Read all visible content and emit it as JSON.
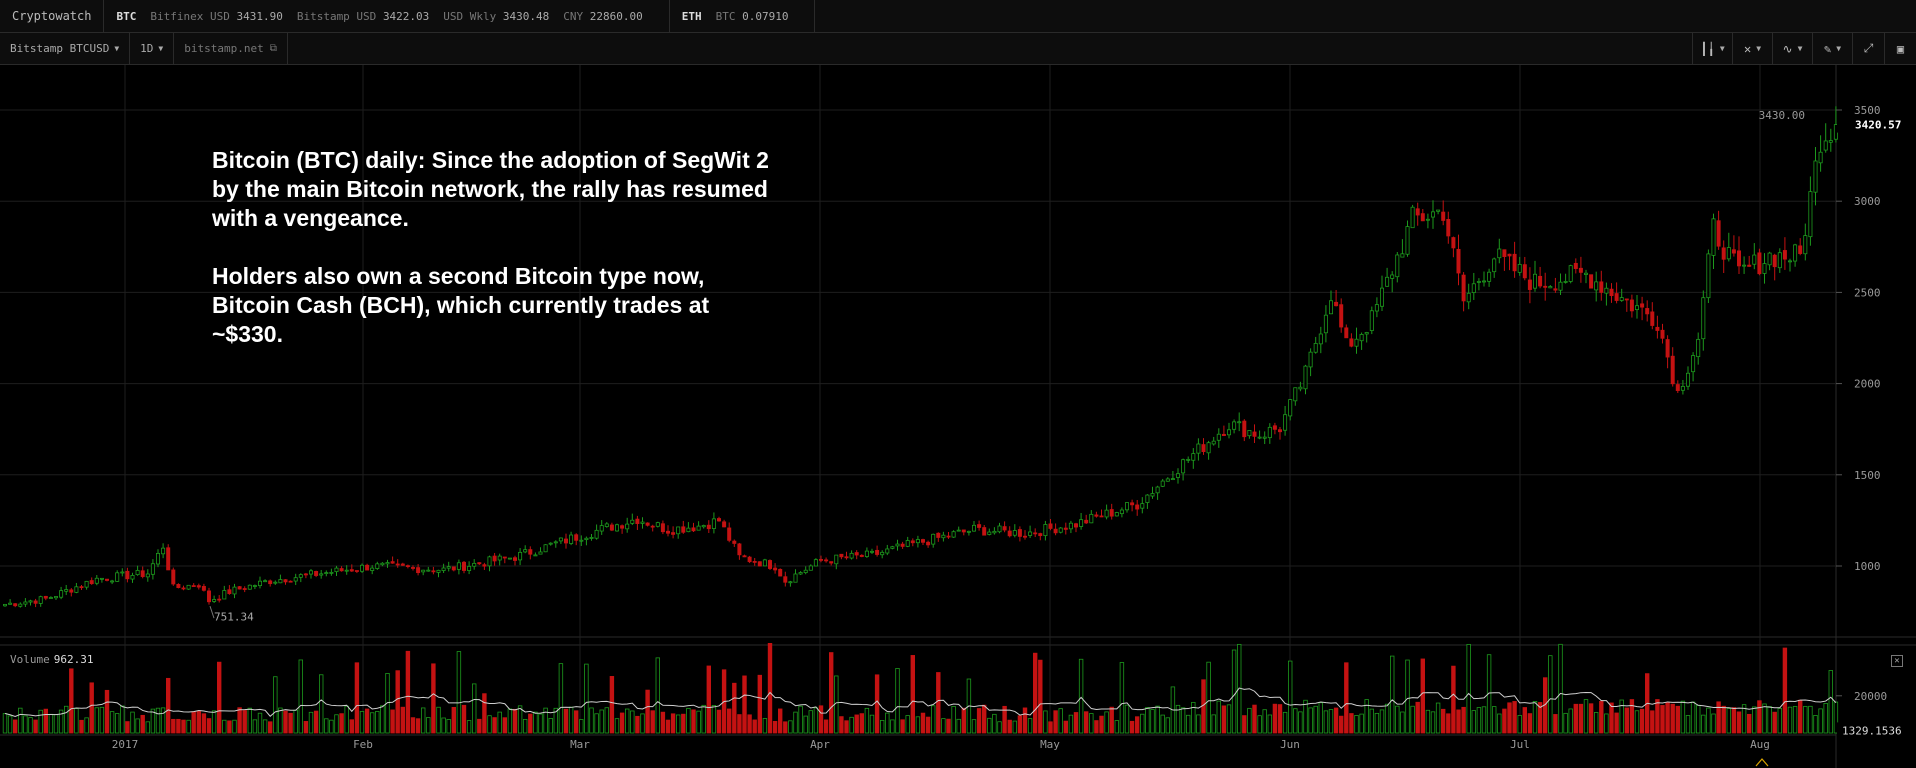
{
  "topbar": {
    "brand": "Cryptowatch",
    "btc": {
      "symbol": "BTC",
      "tickers": [
        {
          "label": "Bitfinex USD",
          "value": "3431.90"
        },
        {
          "label": "Bitstamp USD",
          "value": "3422.03"
        },
        {
          "label": "USD Wkly",
          "value": "3430.48"
        },
        {
          "label": "CNY",
          "value": "22860.00"
        }
      ]
    },
    "eth": {
      "symbol": "ETH",
      "tickers": [
        {
          "label": "BTC",
          "value": "0.07910"
        }
      ]
    }
  },
  "toolbar": {
    "market": "Bitstamp BTCUSD",
    "interval": "1D",
    "source": "bitstamp.net",
    "tools": [
      "candles-icon",
      "crosshair-icon",
      "indicators-icon",
      "draw-icon",
      "fullscreen-icon",
      "window-icon"
    ]
  },
  "annotation": {
    "para1": "Bitcoin (BTC) daily: Since the adoption of SegWit 2 by the main Bitcoin network, the rally has resumed with a vengeance.",
    "para2": "Holders also own a second Bitcoin type now, Bitcoin Cash (BCH), which currently trades at ~$330."
  },
  "volume": {
    "label": "Volume",
    "value": "962.31",
    "close_icon": "close-icon"
  },
  "colors": {
    "up": "#1d9a1d",
    "down": "#c41212",
    "grid": "#1e1e1e",
    "ma": "#cfcfcf",
    "marker": "#d9a400"
  },
  "chart_data": {
    "type": "candlestick",
    "ylim": [
      600,
      3600
    ],
    "y_ticks": [
      1000,
      1500,
      2000,
      2500,
      3000,
      3500
    ],
    "x_labels": [
      "2017",
      "Feb",
      "Mar",
      "Apr",
      "May",
      "Jun",
      "Jul",
      "Aug"
    ],
    "last_price": "3420.57",
    "high_marker": "3430.00",
    "low_marker": "751.34",
    "volume_ticks": [
      "20000"
    ],
    "volume_last": "1329.1536",
    "volume_ylim": [
      0,
      50000
    ],
    "anchors": [
      {
        "day": 0,
        "price": 790
      },
      {
        "day": 8,
        "price": 820
      },
      {
        "day": 18,
        "price": 930
      },
      {
        "day": 28,
        "price": 960
      },
      {
        "day": 31,
        "price": 1110
      },
      {
        "day": 33,
        "price": 880
      },
      {
        "day": 38,
        "price": 900
      },
      {
        "day": 40,
        "price": 810
      },
      {
        "day": 44,
        "price": 860
      },
      {
        "day": 52,
        "price": 920
      },
      {
        "day": 62,
        "price": 960
      },
      {
        "day": 72,
        "price": 1000
      },
      {
        "day": 86,
        "price": 980
      },
      {
        "day": 100,
        "price": 1050
      },
      {
        "day": 112,
        "price": 1160
      },
      {
        "day": 124,
        "price": 1260
      },
      {
        "day": 130,
        "price": 1200
      },
      {
        "day": 136,
        "price": 1220
      },
      {
        "day": 140,
        "price": 1250
      },
      {
        "day": 144,
        "price": 1050
      },
      {
        "day": 151,
        "price": 1000
      },
      {
        "day": 153,
        "price": 920
      },
      {
        "day": 160,
        "price": 1030
      },
      {
        "day": 170,
        "price": 1060
      },
      {
        "day": 178,
        "price": 1120
      },
      {
        "day": 190,
        "price": 1200
      },
      {
        "day": 200,
        "price": 1180
      },
      {
        "day": 210,
        "price": 1230
      },
      {
        "day": 222,
        "price": 1340
      },
      {
        "day": 230,
        "price": 1540
      },
      {
        "day": 240,
        "price": 1780
      },
      {
        "day": 246,
        "price": 1720
      },
      {
        "day": 250,
        "price": 1760
      },
      {
        "day": 255,
        "price": 2050
      },
      {
        "day": 260,
        "price": 2500
      },
      {
        "day": 263,
        "price": 2200
      },
      {
        "day": 268,
        "price": 2350
      },
      {
        "day": 276,
        "price": 2900
      },
      {
        "day": 282,
        "price": 2950
      },
      {
        "day": 286,
        "price": 2450
      },
      {
        "day": 292,
        "price": 2700
      },
      {
        "day": 300,
        "price": 2550
      },
      {
        "day": 310,
        "price": 2600
      },
      {
        "day": 318,
        "price": 2450
      },
      {
        "day": 324,
        "price": 2350
      },
      {
        "day": 328,
        "price": 1950
      },
      {
        "day": 332,
        "price": 2250
      },
      {
        "day": 335,
        "price": 2850
      },
      {
        "day": 340,
        "price": 2600
      },
      {
        "day": 346,
        "price": 2700
      },
      {
        "day": 352,
        "price": 2700
      },
      {
        "day": 356,
        "price": 3350
      },
      {
        "day": 359,
        "price": 3420
      }
    ]
  }
}
